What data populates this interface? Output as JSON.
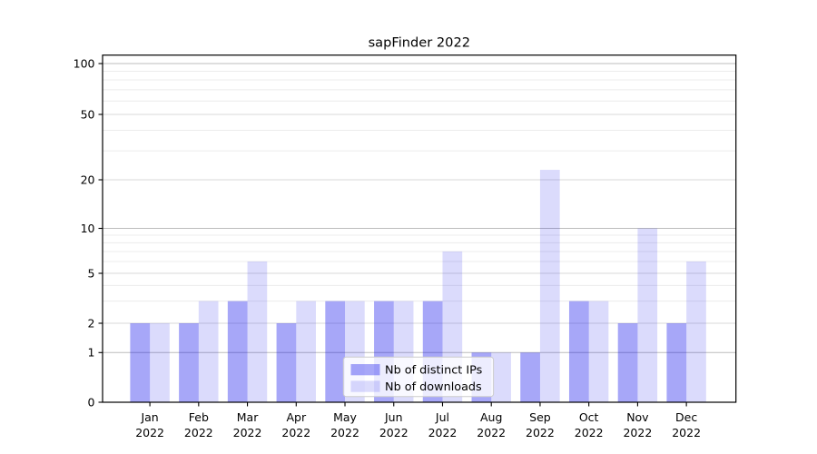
{
  "figure": {
    "background": "#ffffff"
  },
  "chart_data": {
    "type": "bar",
    "title": "sapFinder 2022",
    "categories": [
      {
        "month": "Jan",
        "year": "2022"
      },
      {
        "month": "Feb",
        "year": "2022"
      },
      {
        "month": "Mar",
        "year": "2022"
      },
      {
        "month": "Apr",
        "year": "2022"
      },
      {
        "month": "May",
        "year": "2022"
      },
      {
        "month": "Jun",
        "year": "2022"
      },
      {
        "month": "Jul",
        "year": "2022"
      },
      {
        "month": "Aug",
        "year": "2022"
      },
      {
        "month": "Sep",
        "year": "2022"
      },
      {
        "month": "Oct",
        "year": "2022"
      },
      {
        "month": "Nov",
        "year": "2022"
      },
      {
        "month": "Dec",
        "year": "2022"
      }
    ],
    "series": [
      {
        "name": "Nb of distinct IPs",
        "fill": "rgba(10,10,235,0.36)",
        "solid_hex_approx": "#a7a7f8",
        "values": [
          2,
          2,
          3,
          2,
          3,
          3,
          3,
          1,
          1,
          3,
          2,
          2
        ]
      },
      {
        "name": "Nb of downloads",
        "fill": "rgba(10,10,235,0.145)",
        "solid_hex_approx": "#dcdcfa",
        "values": [
          2,
          3,
          6,
          3,
          3,
          3,
          7,
          1,
          23,
          3,
          10,
          6
        ]
      }
    ],
    "y_ticks": [
      0,
      1,
      2,
      5,
      10,
      20,
      50,
      100
    ],
    "y_minor_gridlines": [
      3,
      4,
      6,
      7,
      8,
      9,
      30,
      40,
      60,
      70,
      80,
      90
    ],
    "y_scale": "log-like with 0 baseline (ticks 0,1,2,5,10,20,50,100)",
    "ylim": [
      0,
      115
    ],
    "xlabel": "",
    "ylabel": "",
    "grid": "horizontal, major (1,10,100) darker + labeled (2,5,20,50) medium + minor faint",
    "legend": {
      "position": "lower center",
      "entries": [
        "Nb of distinct IPs",
        "Nb of downloads"
      ]
    },
    "colors": {
      "spine": "#000000",
      "grid_major": "#bcbcbc",
      "grid_labeled": "#dadada",
      "grid_minor": "#ececec",
      "legend_border": "#cccccc"
    }
  }
}
